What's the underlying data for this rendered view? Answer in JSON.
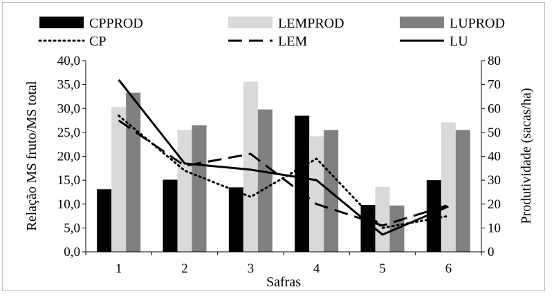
{
  "chart_data": {
    "type": "bar",
    "xlabel": "Safras",
    "ylabel": "Relação MS fruto/MS total",
    "y2label": "Produtividade (sacas/ha)",
    "categories": [
      "1",
      "2",
      "3",
      "4",
      "5",
      "6"
    ],
    "ylim": [
      0,
      40
    ],
    "y2lim": [
      0,
      80
    ],
    "yticks": [
      "0,0",
      "5,0",
      "10,0",
      "15,0",
      "20,0",
      "25,0",
      "30,0",
      "35,0",
      "40,0"
    ],
    "y2ticks": [
      "0",
      "10",
      "20",
      "30",
      "40",
      "50",
      "60",
      "70",
      "80"
    ],
    "bar_series": [
      {
        "name": "CPPROD",
        "color": "#000000",
        "values": [
          13.1,
          15.1,
          13.5,
          28.5,
          9.8,
          15.0
        ]
      },
      {
        "name": "LEMPROD",
        "color": "#d9d9d9",
        "values": [
          30.3,
          25.5,
          35.6,
          24.2,
          13.6,
          27.1
        ]
      },
      {
        "name": "LUPROD",
        "color": "#808080",
        "values": [
          33.3,
          26.5,
          29.8,
          25.5,
          9.7,
          25.5
        ]
      }
    ],
    "line_series": [
      {
        "name": "CP",
        "style": "dotted",
        "values": [
          28.5,
          17.0,
          11.5,
          19.5,
          5.0,
          7.5
        ]
      },
      {
        "name": "LEM",
        "style": "dashed",
        "values": [
          27.5,
          18.0,
          20.5,
          10.0,
          5.5,
          9.8
        ]
      },
      {
        "name": "LU",
        "style": "solid",
        "values": [
          36.0,
          18.5,
          17.2,
          15.0,
          3.6,
          9.5
        ]
      }
    ],
    "grid": false,
    "legend_position": "top"
  }
}
